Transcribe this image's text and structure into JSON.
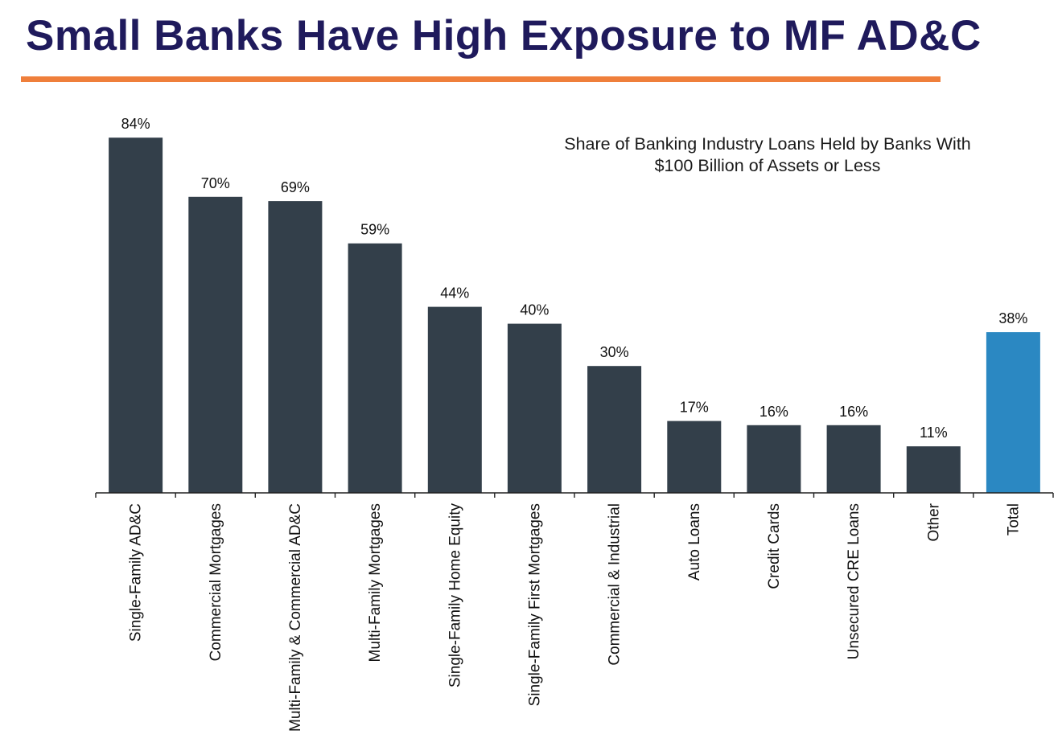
{
  "header": {
    "title": "Small Banks Have High Exposure to MF AD&C",
    "rule_color": "#ef7f3b"
  },
  "chart_data": {
    "type": "bar",
    "title_lines": [
      "Share of Banking Industry Loans Held by Banks With",
      "$100 Billion of Assets or Less"
    ],
    "categories": [
      "Single-Family AD&C",
      "Commercial Mortgages",
      "Multi-Family & Commercial AD&C",
      "Multi-Family Mortgages",
      "Single-Family Home Equity",
      "Single-Family First Mortgages",
      "Commercial & Industrial",
      "Auto Loans",
      "Credit Cards",
      "Unsecured CRE Loans",
      "Other",
      "Total"
    ],
    "values": [
      84,
      70,
      69,
      59,
      44,
      40,
      30,
      17,
      16,
      16,
      11,
      38
    ],
    "value_labels": [
      "84%",
      "70%",
      "69%",
      "59%",
      "44%",
      "40%",
      "30%",
      "17%",
      "16%",
      "16%",
      "11%",
      "38%"
    ],
    "unit": "%",
    "ylim": [
      0,
      100
    ],
    "grid": false,
    "colors": {
      "default": "#333f4a",
      "highlight": "#2b88c2",
      "highlight_index": 11
    }
  }
}
